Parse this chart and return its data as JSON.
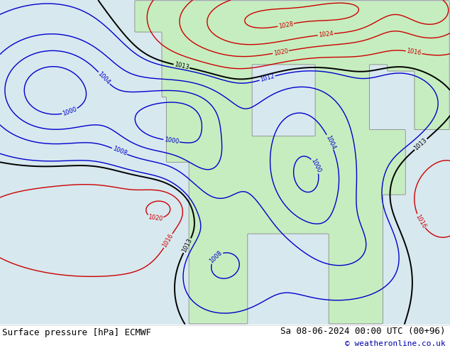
{
  "title_left": "Surface pressure [hPa] ECMWF",
  "title_right": "Sa 08-06-2024 00:00 UTC (00+96)",
  "copyright": "© weatheronline.co.uk",
  "ocean_color": "#d8e8f0",
  "land_color": "#c8eec0",
  "coast_color": "#888888",
  "text_color": "#000000",
  "blue_color": "#0000cc",
  "red_color": "#cc0000",
  "black_color": "#000000",
  "fig_width": 6.34,
  "fig_height": 4.9,
  "dpi": 100,
  "bottom_bar_height": 0.068,
  "title_fontsize": 9,
  "copyright_fontsize": 8,
  "contour_fontsize": 6,
  "contour_lw": 1.0
}
